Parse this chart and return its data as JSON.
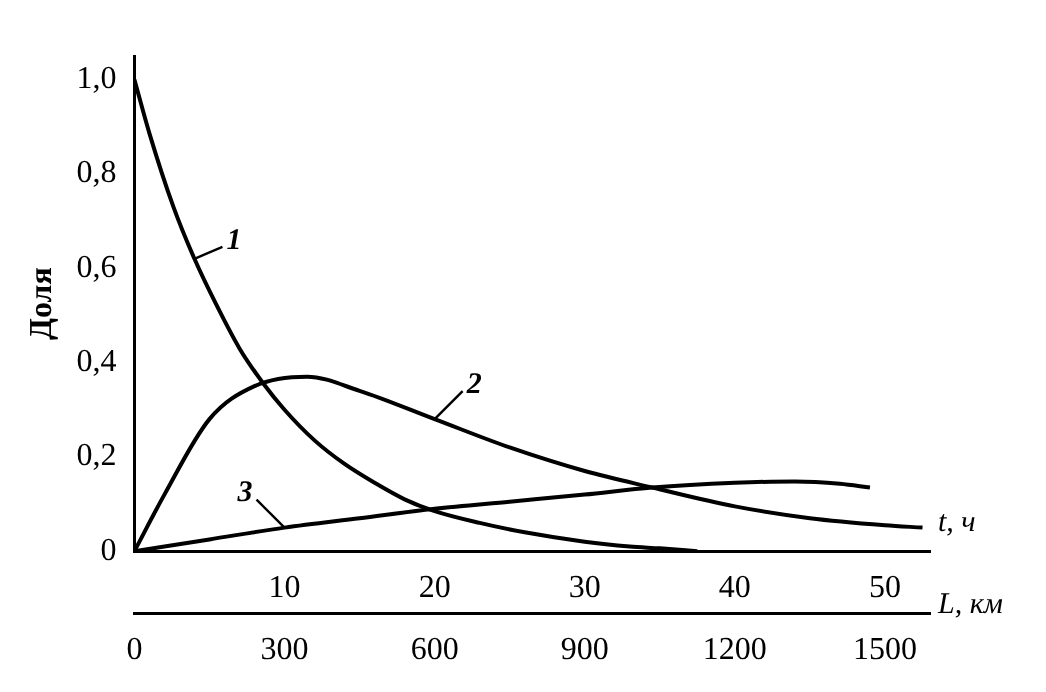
{
  "chart_data": {
    "type": "line",
    "xlabel": "t, ч",
    "ylabel": "Доля",
    "x2label": "L, км",
    "xlim": [
      0,
      53
    ],
    "xticks": [
      10,
      20,
      30,
      40,
      50
    ],
    "x2lim": [
      0,
      1590
    ],
    "x2ticks": [
      0,
      300,
      600,
      900,
      1200,
      1500
    ],
    "ylim": [
      0,
      1.05
    ],
    "yticks": [
      {
        "value": 0,
        "label": "0"
      },
      {
        "value": 0.2,
        "label": "0,2"
      },
      {
        "value": 0.4,
        "label": "0,4"
      },
      {
        "value": 0.6,
        "label": "0,6"
      },
      {
        "value": 0.8,
        "label": "0,8"
      },
      {
        "value": 1,
        "label": "1,0"
      }
    ],
    "grid": false,
    "legend": false,
    "series": [
      {
        "color": "#000000",
        "x": [
          0,
          1,
          2.6,
          4,
          5.5,
          7,
          8.6,
          10,
          12,
          14,
          16,
          18,
          20,
          23,
          26,
          30,
          33,
          35,
          37.5
        ],
        "values": [
          1.0,
          0.886,
          0.73,
          0.62,
          0.52,
          0.43,
          0.355,
          0.3,
          0.235,
          0.185,
          0.145,
          0.11,
          0.085,
          0.06,
          0.04,
          0.02,
          0.01,
          0.006,
          0.0
        ]
      },
      {
        "color": "#000000",
        "x": [
          0,
          2,
          5,
          8,
          11.5,
          15,
          20,
          25,
          30,
          34.5,
          40,
          45,
          50,
          52.5
        ],
        "values": [
          0,
          0.12,
          0.28,
          0.35,
          0.37,
          0.34,
          0.28,
          0.22,
          0.17,
          0.135,
          0.095,
          0.07,
          0.055,
          0.05
        ]
      },
      {
        "color": "#000000",
        "x": [
          0,
          5,
          10,
          15,
          20,
          25,
          30,
          34.5,
          40,
          44,
          47,
          49
        ],
        "values": [
          0,
          0.025,
          0.05,
          0.07,
          0.09,
          0.105,
          0.12,
          0.135,
          0.145,
          0.148,
          0.143,
          0.135
        ]
      }
    ],
    "annotations": [
      "1",
      "2",
      "3"
    ]
  }
}
